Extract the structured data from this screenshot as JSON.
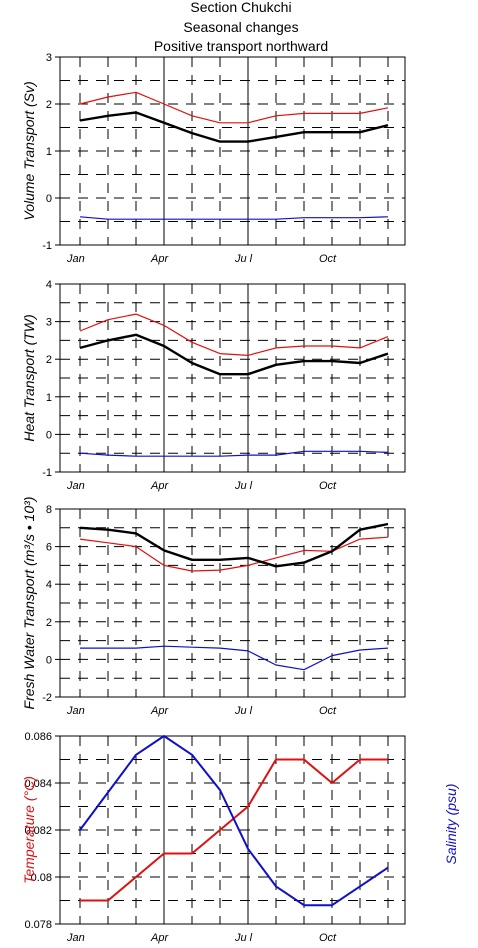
{
  "title_lines": [
    "Section Chukchi",
    "Seasonal changes",
    "Positive transport northward"
  ],
  "colors": {
    "red": "#e01010",
    "black": "#000000",
    "blue": "#1010c8"
  },
  "chart_data": [
    {
      "type": "line",
      "ylabel": "Volume Transport (Sv)",
      "ylim": [
        -1,
        3
      ],
      "yticks": [
        "-1",
        "0",
        "1",
        "2",
        "3"
      ],
      "x_months": [
        1,
        2,
        3,
        4,
        5,
        6,
        7,
        8,
        9,
        10,
        11,
        12
      ],
      "month_labels": [
        "Jan",
        "Apr",
        "Ju l",
        "Oct"
      ],
      "grid": true,
      "series": [
        {
          "color": "red",
          "values": [
            2.0,
            2.15,
            2.25,
            2.0,
            1.75,
            1.6,
            1.6,
            1.75,
            1.8,
            1.8,
            1.8,
            1.92
          ]
        },
        {
          "color": "black",
          "values": [
            1.65,
            1.75,
            1.82,
            1.6,
            1.38,
            1.2,
            1.2,
            1.3,
            1.4,
            1.4,
            1.4,
            1.55
          ]
        },
        {
          "color": "blue",
          "values": [
            -0.4,
            -0.45,
            -0.45,
            -0.45,
            -0.45,
            -0.45,
            -0.45,
            -0.45,
            -0.42,
            -0.42,
            -0.42,
            -0.4
          ]
        }
      ]
    },
    {
      "type": "line",
      "ylabel": "Heat Transport (TW)",
      "ylim": [
        -1,
        4
      ],
      "yticks": [
        "-1",
        "0",
        "1",
        "2",
        "3",
        "4"
      ],
      "x_months": [
        1,
        2,
        3,
        4,
        5,
        6,
        7,
        8,
        9,
        10,
        11,
        12
      ],
      "month_labels": [
        "Jan",
        "Apr",
        "Ju l",
        "Oct"
      ],
      "grid": true,
      "series": [
        {
          "color": "red",
          "values": [
            2.75,
            3.05,
            3.2,
            2.9,
            2.45,
            2.15,
            2.1,
            2.3,
            2.35,
            2.35,
            2.3,
            2.6
          ]
        },
        {
          "color": "black",
          "values": [
            2.3,
            2.5,
            2.65,
            2.35,
            1.9,
            1.6,
            1.6,
            1.85,
            1.95,
            1.95,
            1.9,
            2.15
          ]
        },
        {
          "color": "blue",
          "values": [
            -0.5,
            -0.55,
            -0.58,
            -0.58,
            -0.58,
            -0.58,
            -0.55,
            -0.55,
            -0.45,
            -0.45,
            -0.45,
            -0.48
          ]
        }
      ]
    },
    {
      "type": "line",
      "ylabel": "Fresh Water Transport (m³/s • 10³)",
      "ylim": [
        -2,
        8
      ],
      "yticks": [
        "-2",
        "0",
        "2",
        "4",
        "6",
        "8"
      ],
      "x_months": [
        1,
        2,
        3,
        4,
        5,
        6,
        7,
        8,
        9,
        10,
        11,
        12
      ],
      "month_labels": [
        "Jan",
        "Apr",
        "Ju l",
        "Oct"
      ],
      "grid": true,
      "series": [
        {
          "color": "red",
          "values": [
            6.4,
            6.2,
            6.0,
            5.0,
            4.7,
            4.75,
            5.0,
            5.4,
            5.8,
            5.75,
            6.4,
            6.5
          ]
        },
        {
          "color": "black",
          "values": [
            7.0,
            6.9,
            6.7,
            5.8,
            5.3,
            5.3,
            5.4,
            4.95,
            5.15,
            5.75,
            6.9,
            7.2
          ]
        },
        {
          "color": "blue",
          "values": [
            0.6,
            0.6,
            0.6,
            0.7,
            0.65,
            0.6,
            0.45,
            -0.3,
            -0.55,
            0.2,
            0.5,
            0.6
          ]
        }
      ]
    },
    {
      "type": "line",
      "ylabel": "Temperature (°C)",
      "ylabel2": "Salinity (psu)",
      "ylim": [
        0.078,
        0.086
      ],
      "yticks": [
        "0.078",
        "0.08",
        "0.082",
        "0.084",
        "0.086"
      ],
      "x_months": [
        1,
        2,
        3,
        4,
        5,
        6,
        7,
        8,
        9,
        10,
        11,
        12
      ],
      "month_labels": [
        "Jan",
        "Apr",
        "Ju l",
        "Oct"
      ],
      "grid": true,
      "series": [
        {
          "color": "red",
          "values": [
            0.079,
            0.079,
            0.08,
            0.081,
            0.081,
            0.082,
            0.083,
            0.085,
            0.085,
            0.084,
            0.085,
            0.085
          ]
        },
        {
          "color": "blue",
          "values": [
            0.082,
            0.0836,
            0.0852,
            0.086,
            0.0852,
            0.0837,
            0.0812,
            0.0796,
            0.0788,
            0.0788,
            0.0796,
            0.0804
          ]
        }
      ]
    }
  ]
}
